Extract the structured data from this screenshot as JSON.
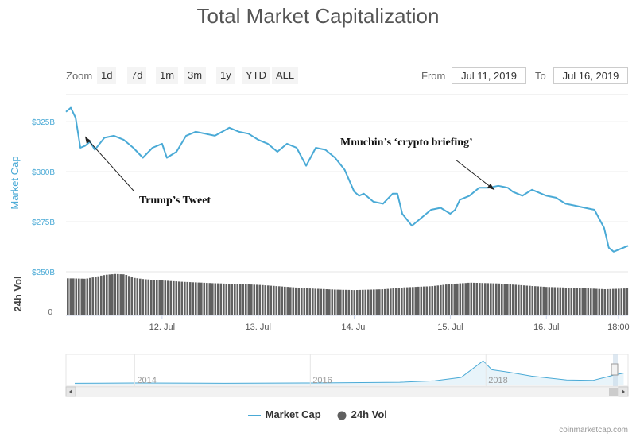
{
  "title": "Total Market Capitalization",
  "zoom": {
    "label": "Zoom",
    "buttons": [
      "1d",
      "7d",
      "1m",
      "3m",
      "1y",
      "YTD",
      "ALL"
    ]
  },
  "range": {
    "from_label": "From",
    "from_value": "Jul 11, 2019",
    "to_label": "To",
    "to_value": "Jul 16, 2019"
  },
  "legend": {
    "market_cap": "Market Cap",
    "vol": "24h Vol"
  },
  "credits": "coinmarketcap.com",
  "colors": {
    "market_cap": "#4aaad6",
    "volume": "#606060",
    "grid": "#e6e6e6"
  },
  "chart_data": [
    {
      "type": "line",
      "title": "Total Market Capitalization",
      "ylabel": "Market Cap",
      "yticks": [
        "$250B",
        "$275B",
        "$300B",
        "$325B"
      ],
      "ytick_values": [
        250,
        275,
        300,
        325
      ],
      "ylim": [
        250,
        339
      ],
      "xticks": [
        "12. Jul",
        "13. Jul",
        "14. Jul",
        "15. Jul",
        "16. Jul",
        "18:00"
      ],
      "xtick_values": [
        1,
        2,
        3,
        4,
        5,
        5.75
      ],
      "xlim": [
        0,
        5.85
      ],
      "x_unit": "days from Jul 11, 2019 00:00",
      "series": [
        {
          "name": "Market Cap",
          "x": [
            0,
            0.05,
            0.1,
            0.15,
            0.2,
            0.25,
            0.3,
            0.4,
            0.5,
            0.6,
            0.7,
            0.8,
            0.9,
            1.0,
            1.05,
            1.15,
            1.25,
            1.35,
            1.45,
            1.55,
            1.7,
            1.8,
            1.9,
            2.0,
            2.1,
            2.2,
            2.3,
            2.4,
            2.5,
            2.6,
            2.7,
            2.8,
            2.9,
            3.0,
            3.05,
            3.1,
            3.2,
            3.3,
            3.4,
            3.45,
            3.5,
            3.6,
            3.7,
            3.8,
            3.9,
            4.0,
            4.05,
            4.1,
            4.2,
            4.3,
            4.4,
            4.5,
            4.6,
            4.65,
            4.75,
            4.85,
            4.9,
            5.0,
            5.1,
            5.2,
            5.3,
            5.4,
            5.5,
            5.6,
            5.65,
            5.7,
            5.75,
            5.8,
            5.85
          ],
          "y": [
            330,
            332,
            327,
            312,
            313,
            315,
            311,
            317,
            318,
            316,
            312,
            307,
            312,
            314,
            307,
            310,
            318,
            320,
            319,
            318,
            322,
            320,
            319,
            316,
            314,
            310,
            314,
            312,
            303,
            312,
            311,
            307,
            301,
            290,
            288,
            289,
            285,
            284,
            289,
            289,
            279,
            273,
            277,
            281,
            282,
            279,
            281,
            286,
            288,
            292,
            292,
            293,
            292,
            290,
            288,
            291,
            290,
            288,
            287,
            284,
            283,
            282,
            281,
            272,
            262,
            260,
            261,
            262,
            263
          ]
        }
      ]
    },
    {
      "type": "bar",
      "ylabel": "24h Vol",
      "yticks": [
        "0"
      ],
      "series": [
        {
          "name": "24h Vol",
          "x": [
            0,
            0.2,
            0.4,
            0.5,
            0.6,
            0.7,
            0.8,
            1.0,
            1.2,
            1.5,
            2.0,
            2.5,
            2.8,
            3.0,
            3.3,
            3.5,
            3.8,
            4.0,
            4.2,
            4.5,
            4.8,
            5.0,
            5.3,
            5.6,
            5.85
          ],
          "y": [
            0.85,
            0.84,
            0.93,
            0.95,
            0.94,
            0.86,
            0.83,
            0.8,
            0.77,
            0.74,
            0.7,
            0.62,
            0.59,
            0.58,
            0.6,
            0.64,
            0.67,
            0.72,
            0.75,
            0.73,
            0.68,
            0.65,
            0.63,
            0.6,
            0.62
          ]
        }
      ]
    },
    {
      "type": "area",
      "xticks": [
        "2014",
        "2016",
        "2018"
      ],
      "series": [
        {
          "name": "Market Cap",
          "x": [
            2013.3,
            2014,
            2015,
            2016,
            2017,
            2017.4,
            2017.7,
            2017.95,
            2018.05,
            2018.25,
            2018.5,
            2018.9,
            2019.2,
            2019.45,
            2019.55
          ],
          "y": [
            0.02,
            0.03,
            0.02,
            0.03,
            0.06,
            0.12,
            0.25,
            0.9,
            0.55,
            0.45,
            0.3,
            0.15,
            0.13,
            0.35,
            0.42
          ]
        }
      ]
    }
  ]
}
